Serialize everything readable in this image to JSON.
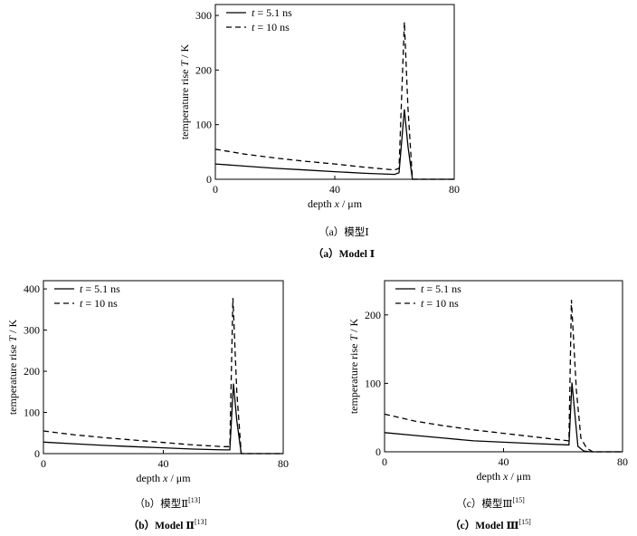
{
  "chart_data": [
    {
      "type": "line",
      "xlabel": "depth x / μm",
      "ylabel": "temperature rise T / K",
      "xlim": [
        0,
        80
      ],
      "ylim": [
        0,
        320
      ],
      "xticks": [
        0,
        40,
        80
      ],
      "yticks": [
        0,
        100,
        200,
        300
      ],
      "legend_position": "top-left",
      "series": [
        {
          "name": "t = 5.1 ns",
          "style": "solid",
          "x": [
            0,
            10,
            20,
            30,
            40,
            50,
            60,
            61.5,
            63.3,
            64.5,
            66,
            80
          ],
          "y": [
            28,
            24,
            20,
            17,
            14,
            11,
            9,
            12,
            128,
            60,
            0,
            0
          ]
        },
        {
          "name": "t = 10 ns",
          "style": "dashed",
          "x": [
            0,
            10,
            20,
            30,
            40,
            50,
            60,
            61.5,
            63.3,
            64.5,
            66,
            80
          ],
          "y": [
            55,
            46,
            39,
            33,
            28,
            22,
            17,
            20,
            288,
            130,
            0,
            0
          ]
        }
      ],
      "caption_cn": "（a）模型Ⅰ",
      "caption_en": "（a）Model Ⅰ"
    },
    {
      "type": "line",
      "xlabel": "depth x / μm",
      "ylabel": "temperature rise T / K",
      "xlim": [
        0,
        80
      ],
      "ylim": [
        0,
        420
      ],
      "xticks": [
        0,
        40,
        80
      ],
      "yticks": [
        0,
        100,
        200,
        300,
        400
      ],
      "legend_position": "top-left",
      "series": [
        {
          "name": "t = 5.1 ns",
          "style": "solid",
          "x": [
            0,
            10,
            20,
            30,
            40,
            50,
            60,
            62.2,
            63.4,
            64.5,
            66,
            80
          ],
          "y": [
            28,
            24,
            20,
            17,
            14,
            11,
            9,
            9,
            170,
            80,
            0,
            0
          ]
        },
        {
          "name": "t = 10 ns",
          "style": "dashed",
          "x": [
            0,
            10,
            20,
            30,
            40,
            50,
            60,
            62.2,
            63.2,
            64.5,
            66,
            80
          ],
          "y": [
            55,
            46,
            39,
            33,
            27,
            21,
            17,
            17,
            378,
            150,
            0,
            0
          ]
        }
      ],
      "caption_cn": "（b）模型Ⅱ",
      "caption_en": "（b）Model Ⅱ",
      "caption_ref": "[13]"
    },
    {
      "type": "line",
      "xlabel": "depth x / μm",
      "ylabel": "temperature rise T / K",
      "xlim": [
        0,
        80
      ],
      "ylim": [
        0,
        250
      ],
      "xticks": [
        0,
        40,
        80
      ],
      "yticks": [
        0,
        100,
        200
      ],
      "legend_position": "top-left",
      "series": [
        {
          "name": "t = 5.1 ns",
          "style": "solid",
          "x": [
            0,
            10,
            20,
            30,
            40,
            50,
            62,
            63,
            65,
            67,
            69,
            80
          ],
          "y": [
            28,
            24,
            20,
            16,
            14,
            12,
            10,
            101,
            8,
            1,
            0,
            0
          ]
        },
        {
          "name": "t = 10 ns",
          "style": "dashed",
          "x": [
            0,
            10,
            20,
            30,
            40,
            50,
            62,
            62.8,
            64.5,
            66,
            68,
            70,
            80
          ],
          "y": [
            55,
            45,
            38,
            32,
            27,
            22,
            16,
            222,
            90,
            20,
            5,
            0,
            0
          ]
        }
      ],
      "caption_cn": "（c）模型Ⅲ",
      "caption_en": "（c）Model Ⅲ",
      "caption_ref": "[15]"
    }
  ]
}
